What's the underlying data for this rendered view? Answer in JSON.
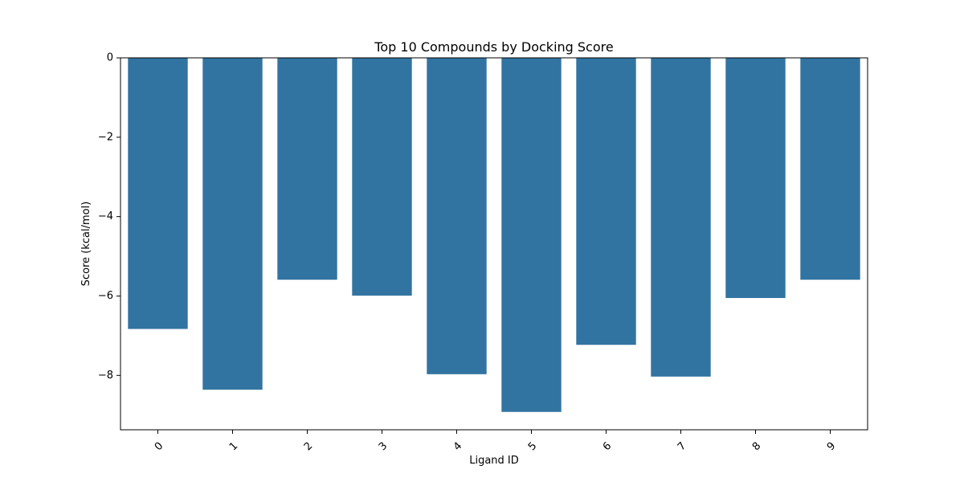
{
  "chart_data": {
    "type": "bar",
    "title": "Top 10 Compounds by Docking Score",
    "xlabel": "Ligand ID",
    "ylabel": "Score (kcal/mol)",
    "categories": [
      "0",
      "1",
      "2",
      "3",
      "4",
      "5",
      "6",
      "7",
      "8",
      "9"
    ],
    "values": [
      -6.83,
      -8.36,
      -5.59,
      -5.99,
      -7.97,
      -8.92,
      -7.23,
      -8.03,
      -6.05,
      -5.59
    ],
    "ylim": [
      -9.37,
      0
    ],
    "yticks": [
      0,
      -2,
      -4,
      -6,
      -8
    ],
    "ytick_labels": [
      "0",
      "−2",
      "−4",
      "−6",
      "−8"
    ],
    "bar_color": "#3274a1",
    "grid": false,
    "legend": "none",
    "xtick_rotation": 45
  }
}
